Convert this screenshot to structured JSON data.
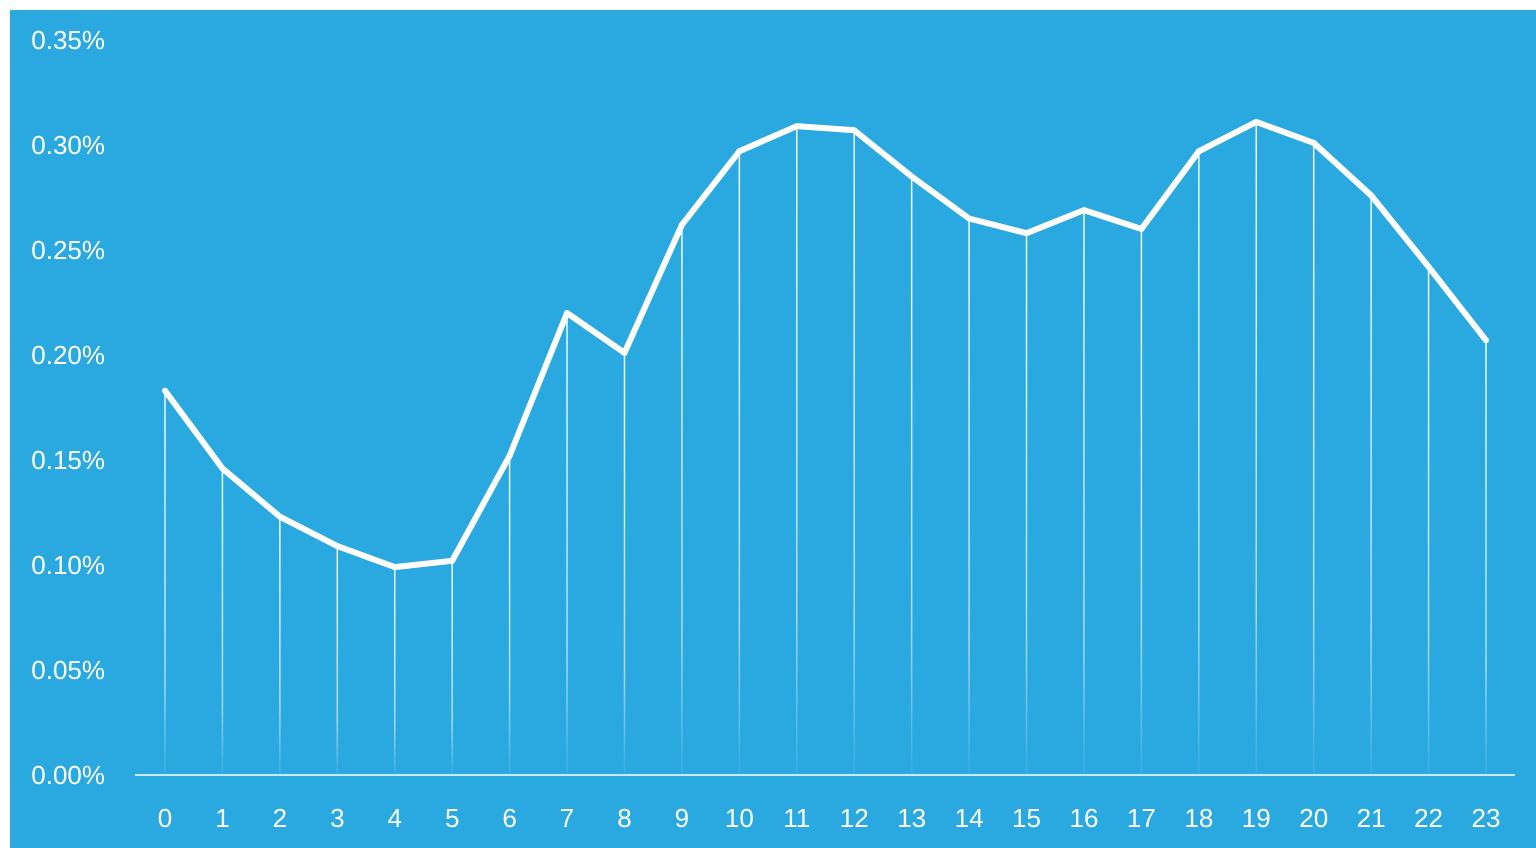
{
  "chart_data": {
    "type": "line",
    "title": "",
    "xlabel": "",
    "ylabel": "",
    "x": [
      "0",
      "1",
      "2",
      "3",
      "4",
      "5",
      "6",
      "7",
      "8",
      "9",
      "10",
      "11",
      "12",
      "13",
      "14",
      "15",
      "16",
      "17",
      "18",
      "19",
      "20",
      "21",
      "22",
      "23"
    ],
    "values": [
      0.183,
      0.146,
      0.123,
      0.109,
      0.099,
      0.102,
      0.152,
      0.22,
      0.201,
      0.262,
      0.297,
      0.309,
      0.307,
      0.285,
      0.265,
      0.258,
      0.269,
      0.26,
      0.297,
      0.311,
      0.301,
      0.276,
      0.242,
      0.207
    ],
    "ylim": [
      0,
      0.35
    ],
    "yticks": [
      0,
      0.05,
      0.1,
      0.15,
      0.2,
      0.25,
      0.3,
      0.35
    ],
    "ytick_labels": [
      "0.00%",
      "0.05%",
      "0.10%",
      "0.15%",
      "0.20%",
      "0.25%",
      "0.30%",
      "0.35%"
    ],
    "grid": false,
    "drop_lines": true,
    "colors": {
      "background": "#2aa8e0",
      "line": "#ffffff",
      "text": "#ffffff",
      "axis": "#ffffff"
    }
  }
}
